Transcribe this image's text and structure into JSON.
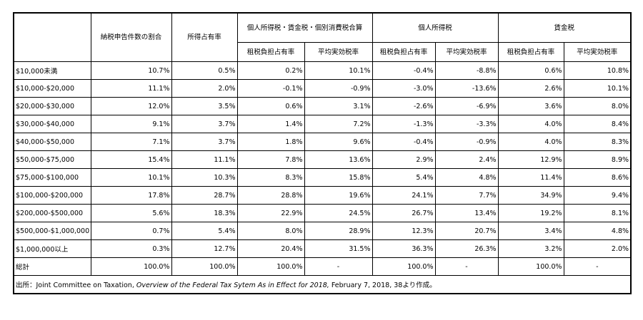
{
  "headers": {
    "col1": "納税申告件数の割合",
    "col2": "所得占有率",
    "group_a": "個人所得税・賃金税・個別消費税合算",
    "group_b": "個人所得税",
    "group_c": "賃金税",
    "sub_burden": "租税負担占有率",
    "sub_rate": "平均実効税率"
  },
  "rows": [
    {
      "label": "$10,000未満",
      "v": [
        "10.7%",
        "0.5%",
        "0.2%",
        "10.1%",
        "-0.4%",
        "-8.8%",
        "0.6%",
        "10.8%"
      ]
    },
    {
      "label": "$10,000-$20,000",
      "v": [
        "11.1%",
        "2.0%",
        "-0.1%",
        "-0.9%",
        "-3.0%",
        "-13.6%",
        "2.6%",
        "10.1%"
      ]
    },
    {
      "label": "$20,000-$30,000",
      "v": [
        "12.0%",
        "3.5%",
        "0.6%",
        "3.1%",
        "-2.6%",
        "-6.9%",
        "3.6%",
        "8.0%"
      ]
    },
    {
      "label": "$30,000-$40,000",
      "v": [
        "9.1%",
        "3.7%",
        "1.4%",
        "7.2%",
        "-1.3%",
        "-3.3%",
        "4.0%",
        "8.4%"
      ]
    },
    {
      "label": "$40,000-$50,000",
      "v": [
        "7.1%",
        "3.7%",
        "1.8%",
        "9.6%",
        "-0.4%",
        "-0.9%",
        "4.0%",
        "8.3%"
      ]
    },
    {
      "label": "$50,000-$75,000",
      "v": [
        "15.4%",
        "11.1%",
        "7.8%",
        "13.6%",
        "2.9%",
        "2.4%",
        "12.9%",
        "8.9%"
      ]
    },
    {
      "label": "$75,000-$100,000",
      "v": [
        "10.1%",
        "10.3%",
        "8.3%",
        "15.8%",
        "5.4%",
        "4.8%",
        "11.4%",
        "8.6%"
      ]
    },
    {
      "label": "$100,000-$200,000",
      "v": [
        "17.8%",
        "28.7%",
        "28.8%",
        "19.6%",
        "24.1%",
        "7.7%",
        "34.9%",
        "9.4%"
      ]
    },
    {
      "label": "$200,000-$500,000",
      "v": [
        "5.6%",
        "18.3%",
        "22.9%",
        "24.5%",
        "26.7%",
        "13.4%",
        "19.2%",
        "8.1%"
      ]
    },
    {
      "label": "$500,000-$1,000,000",
      "v": [
        "0.7%",
        "5.4%",
        "8.0%",
        "28.9%",
        "12.3%",
        "20.7%",
        "3.4%",
        "4.8%"
      ]
    },
    {
      "label": "$1,000,000以上",
      "v": [
        "0.3%",
        "12.7%",
        "20.4%",
        "31.5%",
        "36.3%",
        "26.3%",
        "3.2%",
        "2.0%"
      ]
    },
    {
      "label": "総計",
      "v": [
        "100.0%",
        "100.0%",
        "100.0%",
        "-",
        "100.0%",
        "-",
        "100.0%",
        "-"
      ]
    }
  ],
  "source": {
    "prefix": "出所：Joint Committee on Taxation, ",
    "title": "Overview of the Federal Tax Sytem As in Effect for 2018,",
    "suffix": " February 7, 2018, 38より作成。"
  }
}
